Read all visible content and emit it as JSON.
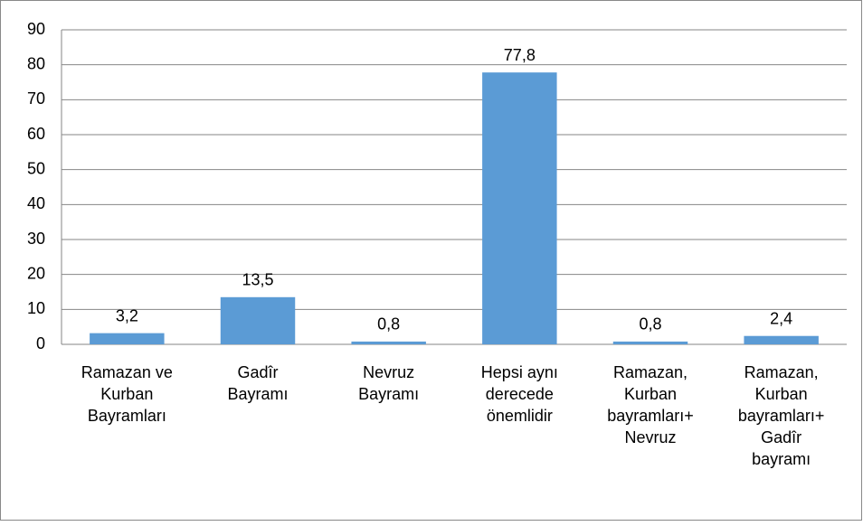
{
  "chart_data": {
    "type": "bar",
    "categories": [
      "Ramazan ve\nKurban\nBayramları",
      "Gadîr\nBayramı",
      "Nevruz\nBayramı",
      "Hepsi aynı\nderecede\nönemlidir",
      "Ramazan,\nKurban\nbayramları+\nNevruz",
      "Ramazan,\nKurban\nbayramları+\nGadîr\nbayramı"
    ],
    "values": [
      3.2,
      13.5,
      0.8,
      77.8,
      0.8,
      2.4
    ],
    "value_labels": [
      "3,2",
      "13,5",
      "0,8",
      "77,8",
      "0,8",
      "2,4"
    ],
    "color": "#5b9bd5",
    "ylim": [
      0,
      90
    ],
    "yticks": [
      0,
      10,
      20,
      30,
      40,
      50,
      60,
      70,
      80,
      90
    ],
    "grid": true
  }
}
